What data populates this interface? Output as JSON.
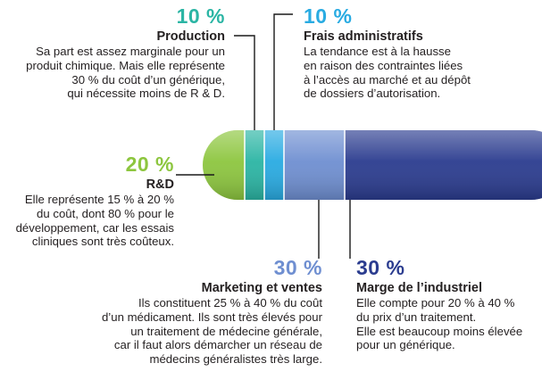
{
  "colors": {
    "green": "#8dc63f",
    "teal": "#2bb5a4",
    "cyan": "#29abe2",
    "blue_light": "#6f8fd1",
    "blue_dark": "#2b3c8f",
    "line": "#1a1a1a"
  },
  "segments": [
    {
      "name": "R&D",
      "share": 0.2
    },
    {
      "name": "Production",
      "share": 0.1
    },
    {
      "name": "Frais administratifs",
      "share": 0.1
    },
    {
      "name": "Marketing et ventes",
      "share": 0.3
    },
    {
      "name": "Marge de l’industriel",
      "share": 0.3
    }
  ],
  "production": {
    "pct": "10 %",
    "title": "Production",
    "lines": [
      "Sa part est assez  marginale pour un",
      "produit chimique. Mais elle représente",
      "30 % du coût d’un générique,",
      "qui nécessite moins de R & D."
    ]
  },
  "frais": {
    "pct": "10 %",
    "title": "Frais administratifs",
    "lines": [
      "La tendance est à la hausse",
      "en raison des contraintes liées",
      "à l’accès au marché et au dépôt",
      "de dossiers d’autorisation."
    ]
  },
  "rd": {
    "pct": "20 %",
    "title": "R&D",
    "lines": [
      "Elle représente 15 % à 20 %",
      "du coût, dont 80 % pour le",
      "développement, car les essais",
      "cliniques sont très coûteux."
    ]
  },
  "marketing": {
    "pct": "30 %",
    "title": "Marketing et ventes",
    "lines": [
      "Ils constituent 25 % à 40 % du coût",
      "d’un médicament. Ils sont très élevés pour",
      "un traitement de médecine générale,",
      "car il faut alors démarcher un réseau de",
      "médecins généralistes très large."
    ]
  },
  "marge": {
    "pct": "30 %",
    "title": "Marge de l’industriel",
    "lines": [
      "Elle compte pour 20 % à 40 %",
      "du prix d’un traitement.",
      "Elle est beaucoup moins élevée",
      "pour un générique."
    ]
  }
}
